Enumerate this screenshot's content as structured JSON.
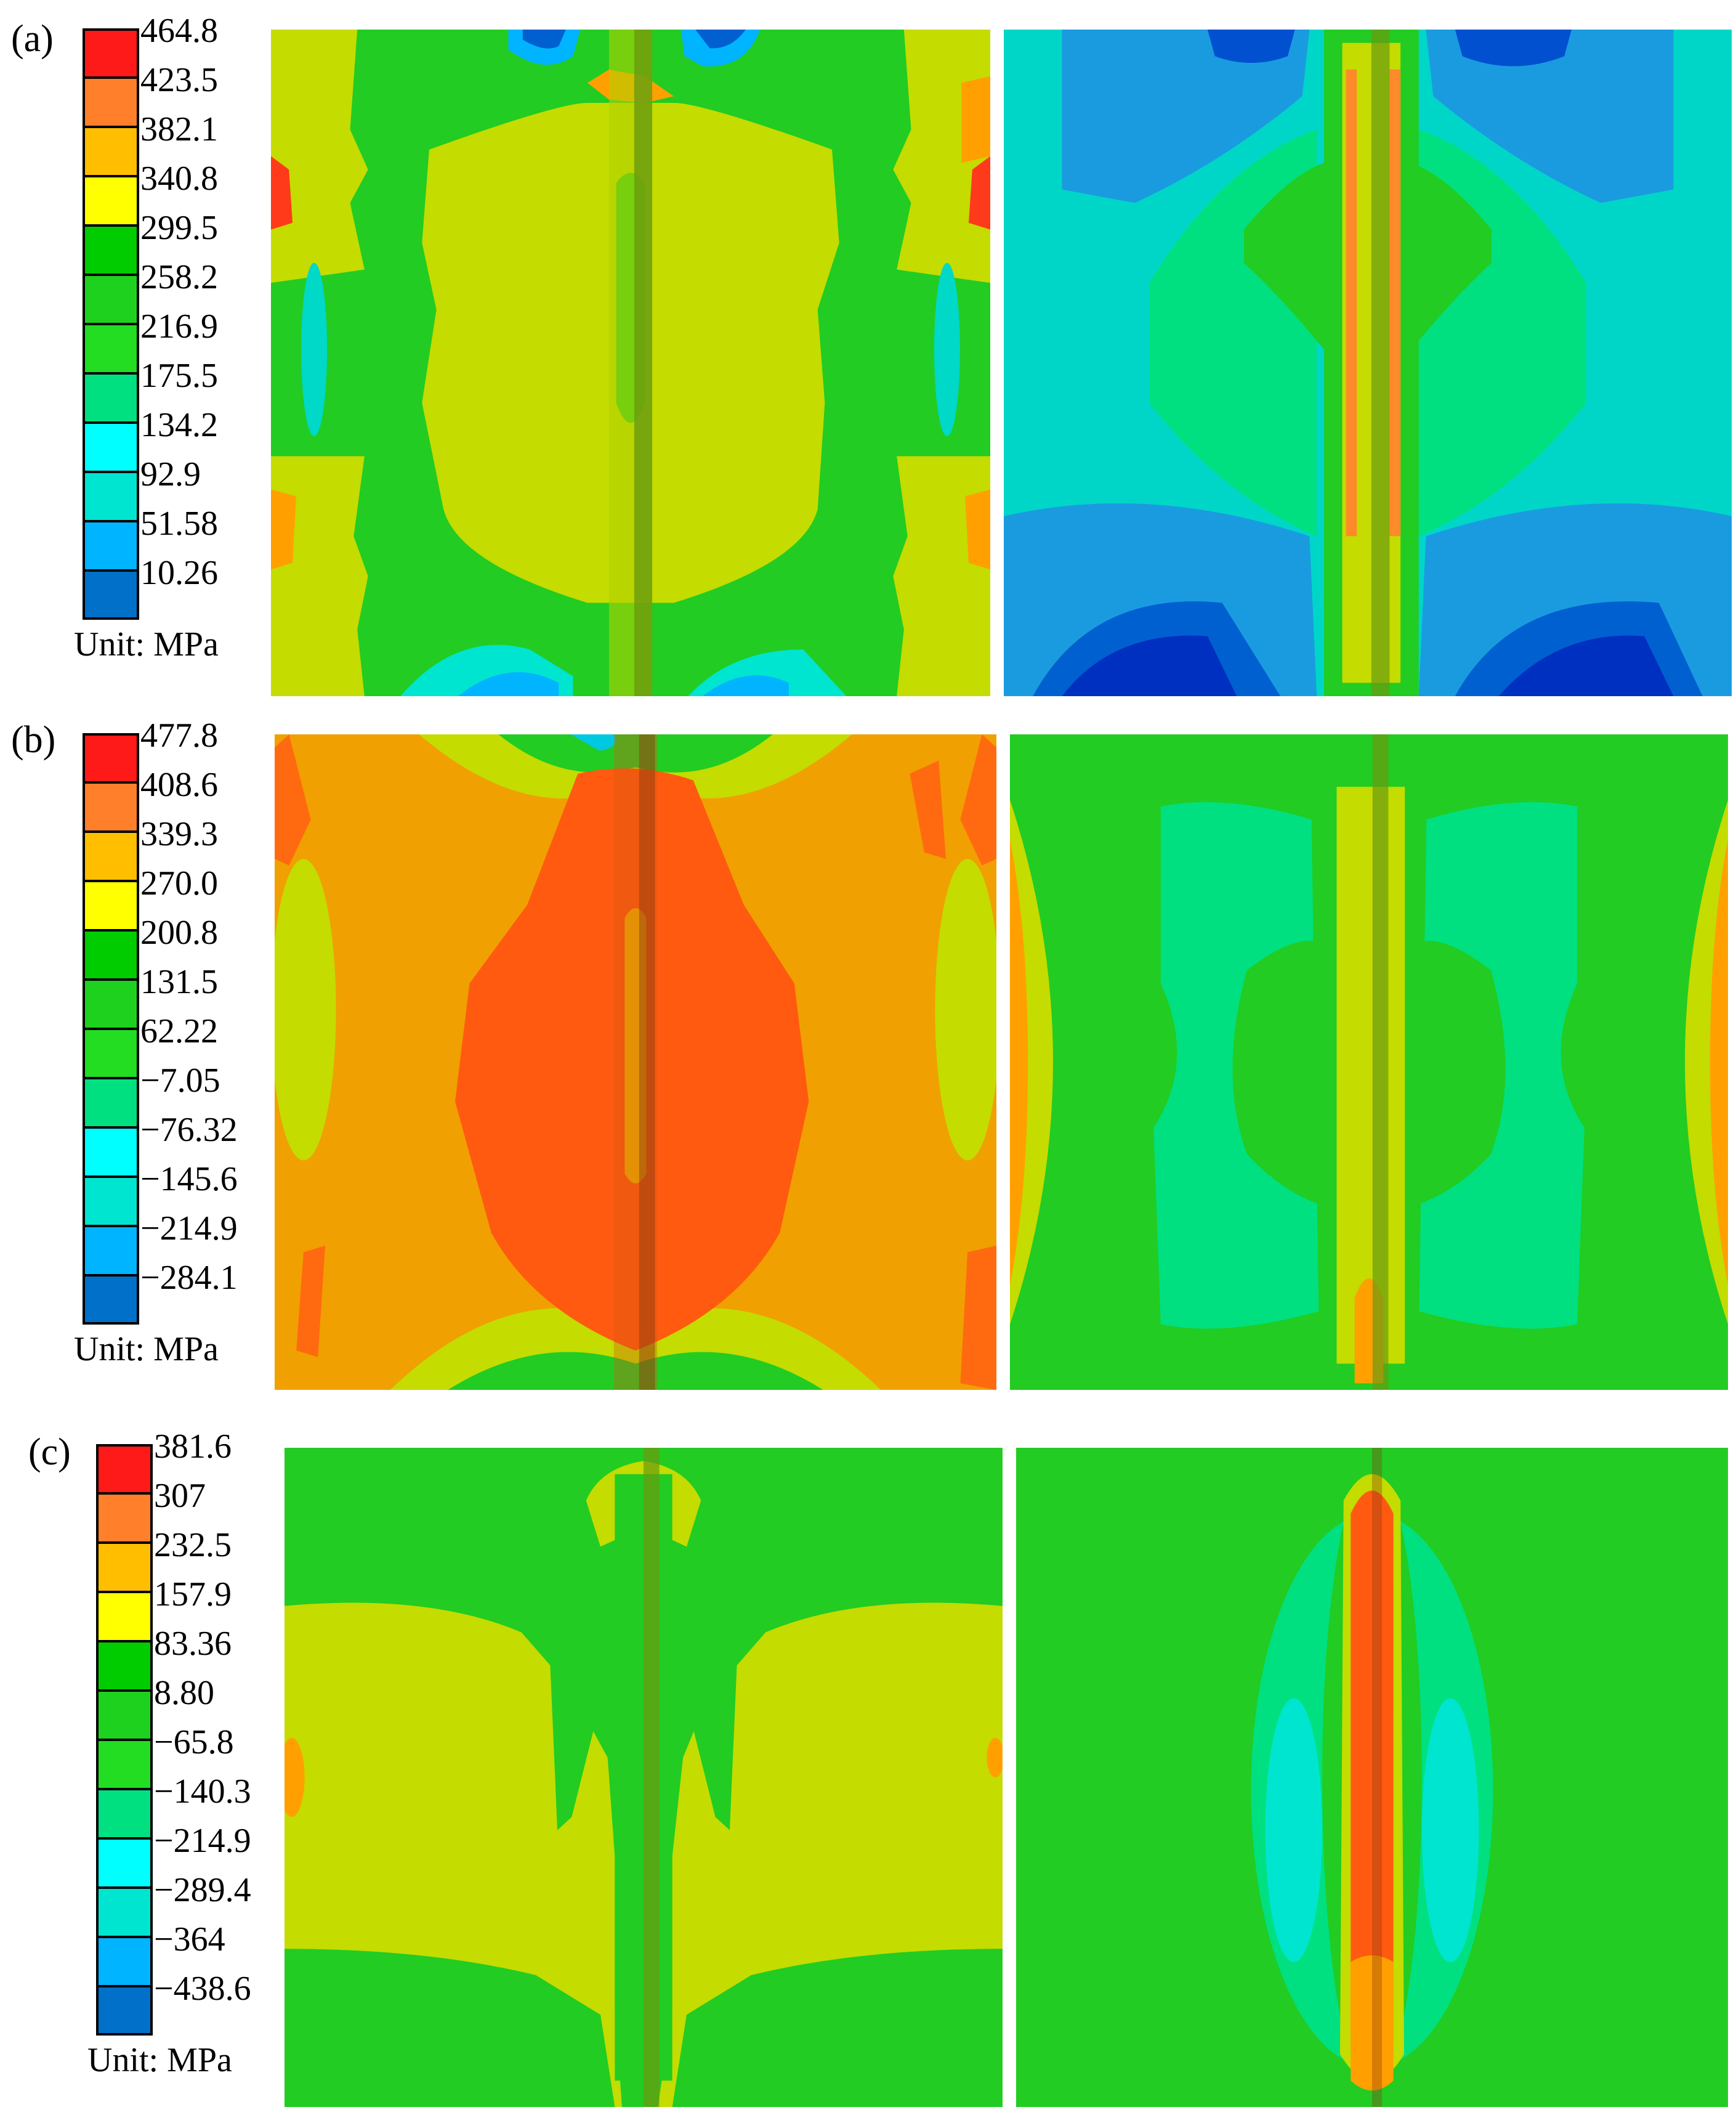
{
  "panels": [
    {
      "label": "(a)",
      "unit": "Unit: MPa",
      "ticks": [
        "464.8",
        "423.5",
        "382.1",
        "340.8",
        "299.5",
        "258.2",
        "216.9",
        "175.5",
        "134.2",
        "92.9",
        "51.58",
        "10.26"
      ],
      "colors": [
        "#ff1a1a",
        "#ff7f2a",
        "#ffbf00",
        "#ffff00",
        "#00cc00",
        "#1fd11f",
        "#22dd22",
        "#00e080",
        "#00ffff",
        "#00e5d0",
        "#00b4ff",
        "#0070c8"
      ]
    },
    {
      "label": "(b)",
      "unit": "Unit: MPa",
      "ticks": [
        "477.8",
        "408.6",
        "339.3",
        "270.0",
        "200.8",
        "131.5",
        "62.22",
        "−7.05",
        "−76.32",
        "−145.6",
        "−214.9",
        "−284.1"
      ],
      "colors": [
        "#ff1a1a",
        "#ff7f2a",
        "#ffbf00",
        "#ffff00",
        "#00cc00",
        "#1fd11f",
        "#22dd22",
        "#00e080",
        "#00ffff",
        "#00e5d0",
        "#00b4ff",
        "#0070c8"
      ]
    },
    {
      "label": "(c)",
      "unit": "Unit: MPa",
      "ticks": [
        "381.6",
        "307",
        "232.5",
        "157.9",
        "83.36",
        "8.80",
        "−65.8",
        "−140.3",
        "−214.9",
        "−289.4",
        "−364",
        "−438.6"
      ],
      "colors": [
        "#ff1a1a",
        "#ff7f2a",
        "#ffbf00",
        "#ffff00",
        "#00cc00",
        "#1fd11f",
        "#22dd22",
        "#00e080",
        "#00ffff",
        "#00e5d0",
        "#00b4ff",
        "#0070c8"
      ]
    }
  ]
}
